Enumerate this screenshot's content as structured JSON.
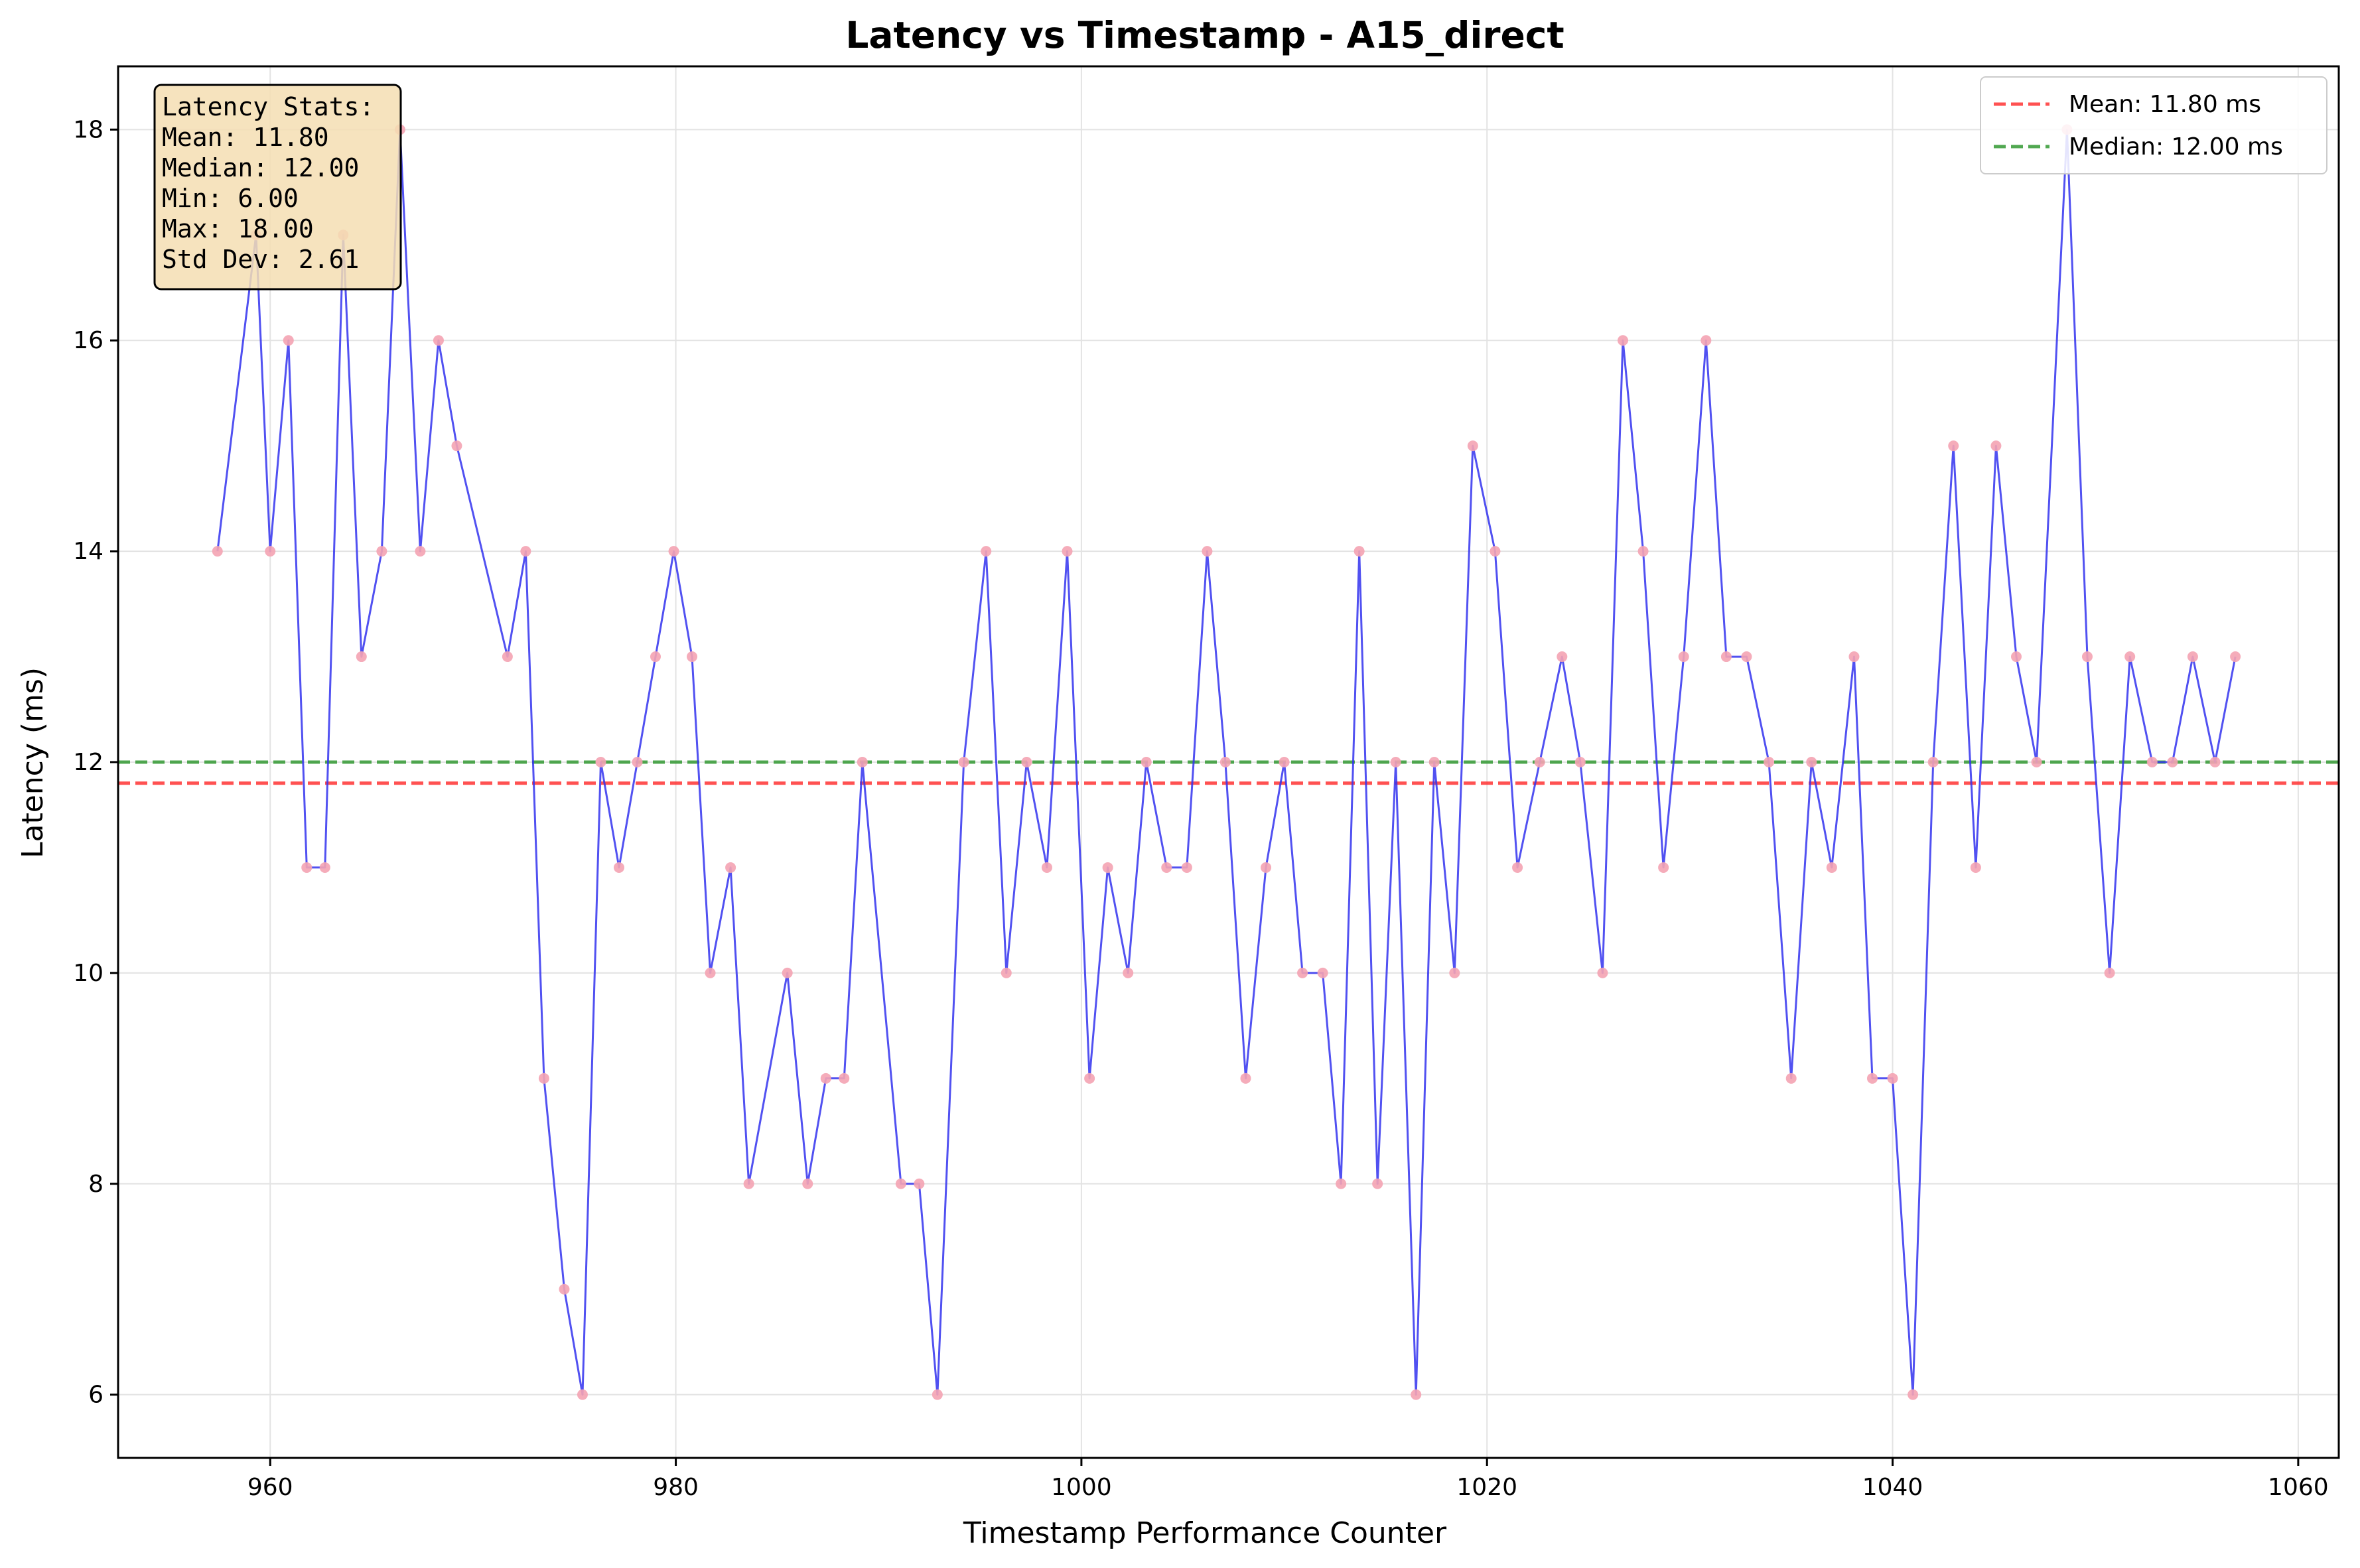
{
  "chart_data": {
    "type": "line",
    "title": "Latency vs Timestamp - A15_direct",
    "xlabel": "Timestamp Performance Counter",
    "ylabel": "Latency (ms)",
    "xlim": [
      952.5,
      1062
    ],
    "ylim": [
      5.4,
      18.6
    ],
    "xticks": [
      960,
      980,
      1000,
      1020,
      1040,
      1060
    ],
    "yticks": [
      6,
      8,
      10,
      12,
      14,
      16,
      18
    ],
    "grid": true,
    "legend_position": "top-right",
    "colors": {
      "line": "#3333ee",
      "marker": "#f4a3b3",
      "mean": "#ff3333",
      "median": "#339933"
    },
    "series": [
      {
        "x": [
          957.4,
          959.3,
          960.0,
          960.9,
          961.8,
          962.7,
          963.6,
          964.5,
          965.5,
          966.4,
          967.4,
          968.3,
          969.2,
          971.7,
          972.6,
          973.5,
          974.5,
          975.4,
          976.3,
          977.2,
          978.1,
          979.0,
          979.9,
          980.8,
          981.7,
          982.7,
          983.6,
          985.5,
          986.5,
          987.4,
          988.3,
          989.2,
          991.1,
          992.0,
          992.9,
          994.2,
          995.3,
          996.3,
          997.3,
          998.3,
          999.3,
          1000.4,
          1001.3,
          1002.3,
          1003.2,
          1004.2,
          1005.2,
          1006.2,
          1007.1,
          1008.1,
          1009.1,
          1010.0,
          1010.9,
          1011.9,
          1012.8,
          1013.7,
          1014.6,
          1015.5,
          1016.5,
          1017.4,
          1018.4,
          1019.3,
          1020.4,
          1021.5,
          1022.6,
          1023.7,
          1024.6,
          1025.7,
          1026.7,
          1027.7,
          1028.7,
          1029.7,
          1030.8,
          1031.8,
          1032.8,
          1033.9,
          1035.0,
          1036.0,
          1037.0,
          1038.1,
          1039.0,
          1040.0,
          1041.0,
          1042.0,
          1043.0,
          1044.1,
          1045.1,
          1046.1,
          1047.1,
          1048.6,
          1049.6,
          1050.7,
          1051.7,
          1052.8,
          1053.8,
          1054.8,
          1055.9,
          1056.9
        ],
        "y": [
          14,
          17,
          14,
          16,
          11,
          11,
          17,
          13,
          14,
          18,
          14,
          16,
          15,
          13,
          14,
          9,
          7,
          6,
          12,
          11,
          12,
          13,
          14,
          13,
          10,
          11,
          8,
          10,
          8,
          9,
          9,
          12,
          8,
          8,
          6,
          12,
          14,
          10,
          12,
          11,
          14,
          9,
          11,
          10,
          12,
          11,
          11,
          14,
          12,
          9,
          11,
          12,
          10,
          10,
          8,
          14,
          8,
          12,
          6,
          12,
          10,
          15,
          14,
          11,
          12,
          13,
          12,
          10,
          16,
          14,
          11,
          13,
          16,
          13,
          13,
          12,
          9,
          12,
          11,
          13,
          9,
          9,
          6,
          12,
          15,
          11,
          15,
          13,
          12,
          18,
          13,
          10,
          13,
          12,
          12,
          13,
          12,
          13
        ]
      }
    ],
    "reference_lines": [
      {
        "label": "Mean: 11.80 ms",
        "value": 11.8,
        "style": "dashed"
      },
      {
        "label": "Median: 12.00 ms",
        "value": 12.0,
        "style": "dashed"
      }
    ],
    "stats_box": {
      "lines": [
        "Latency Stats:",
        "Mean: 11.80",
        "Median: 12.00",
        "Min: 6.00",
        "Max: 18.00",
        "Std Dev: 2.61"
      ]
    }
  }
}
